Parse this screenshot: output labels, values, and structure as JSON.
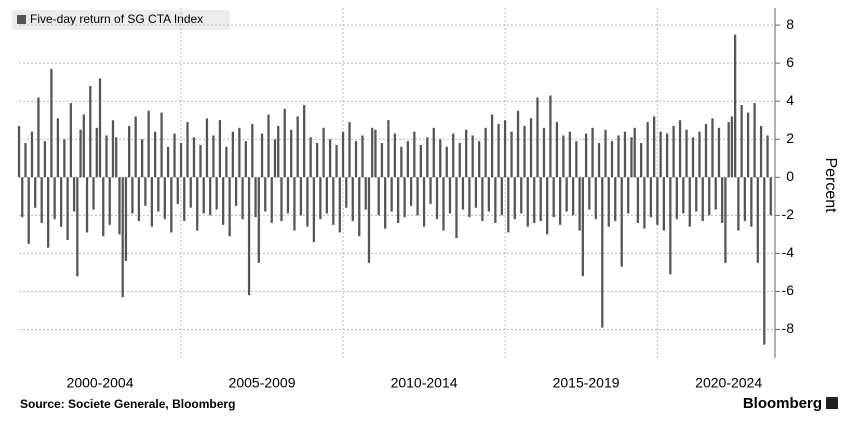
{
  "chart_data": {
    "type": "bar",
    "legend": "Five-day return of SG CTA Index",
    "ylabel": "Percent",
    "source": "Source: Societe Generale, Bloomberg",
    "brand": "Bloomberg",
    "color": "#555555",
    "grid": true,
    "xlim": [
      2000,
      2023.33
    ],
    "xticks": [
      {
        "value": 2002.5,
        "label": "2000-2004"
      },
      {
        "value": 2007.5,
        "label": "2005-2009"
      },
      {
        "value": 2012.5,
        "label": "2010-2014"
      },
      {
        "value": 2017.5,
        "label": "2015-2019"
      },
      {
        "value": 2021.9,
        "label": "2020-2024"
      }
    ],
    "ylim": [
      -9.5,
      8.9
    ],
    "yticks": [
      8,
      6,
      4,
      2,
      0,
      -2,
      -4,
      -6,
      -8
    ],
    "x": [
      2000,
      2000.1,
      2000.2,
      2000.3,
      2000.4,
      2000.5,
      2000.6,
      2000.7,
      2000.8,
      2000.9,
      2001,
      2001.1,
      2001.2,
      2001.3,
      2001.4,
      2001.5,
      2001.6,
      2001.7,
      2001.8,
      2001.9,
      2002,
      2002.1,
      2002.2,
      2002.3,
      2002.4,
      2002.5,
      2002.6,
      2002.7,
      2002.8,
      2002.9,
      2003,
      2003.1,
      2003.2,
      2003.3,
      2003.4,
      2003.5,
      2003.6,
      2003.7,
      2003.8,
      2003.9,
      2004,
      2004.1,
      2004.2,
      2004.3,
      2004.4,
      2004.5,
      2004.6,
      2004.7,
      2004.8,
      2004.9,
      2005,
      2005.1,
      2005.2,
      2005.3,
      2005.4,
      2005.5,
      2005.6,
      2005.7,
      2005.8,
      2005.9,
      2006,
      2006.1,
      2006.2,
      2006.3,
      2006.4,
      2006.5,
      2006.6,
      2006.7,
      2006.8,
      2006.9,
      2007,
      2007.1,
      2007.2,
      2007.3,
      2007.4,
      2007.5,
      2007.6,
      2007.7,
      2007.8,
      2007.9,
      2008,
      2008.1,
      2008.2,
      2008.3,
      2008.4,
      2008.5,
      2008.6,
      2008.7,
      2008.8,
      2008.9,
      2009,
      2009.1,
      2009.2,
      2009.3,
      2009.4,
      2009.5,
      2009.6,
      2009.7,
      2009.8,
      2009.9,
      2010,
      2010.1,
      2010.2,
      2010.3,
      2010.4,
      2010.5,
      2010.6,
      2010.7,
      2010.8,
      2010.9,
      2011,
      2011.1,
      2011.2,
      2011.3,
      2011.4,
      2011.5,
      2011.6,
      2011.7,
      2011.8,
      2011.9,
      2012,
      2012.1,
      2012.2,
      2012.3,
      2012.4,
      2012.5,
      2012.6,
      2012.7,
      2012.8,
      2012.9,
      2013,
      2013.1,
      2013.2,
      2013.3,
      2013.4,
      2013.5,
      2013.6,
      2013.7,
      2013.8,
      2013.9,
      2014,
      2014.1,
      2014.2,
      2014.3,
      2014.4,
      2014.5,
      2014.6,
      2014.7,
      2014.8,
      2014.9,
      2015,
      2015.1,
      2015.2,
      2015.3,
      2015.4,
      2015.5,
      2015.6,
      2015.7,
      2015.8,
      2015.9,
      2016,
      2016.1,
      2016.2,
      2016.3,
      2016.4,
      2016.5,
      2016.6,
      2016.7,
      2016.8,
      2016.9,
      2017,
      2017.1,
      2017.2,
      2017.3,
      2017.4,
      2017.5,
      2017.6,
      2017.7,
      2017.8,
      2017.9,
      2018,
      2018.1,
      2018.2,
      2018.3,
      2018.4,
      2018.5,
      2018.6,
      2018.7,
      2018.8,
      2018.9,
      2019,
      2019.1,
      2019.2,
      2019.3,
      2019.4,
      2019.5,
      2019.6,
      2019.7,
      2019.8,
      2019.9,
      2020,
      2020.1,
      2020.2,
      2020.3,
      2020.4,
      2020.5,
      2020.6,
      2020.7,
      2020.8,
      2020.9,
      2021,
      2021.1,
      2021.2,
      2021.3,
      2021.4,
      2021.5,
      2021.6,
      2021.7,
      2021.8,
      2021.9,
      2022,
      2022.1,
      2022.2,
      2022.3,
      2022.4,
      2022.5,
      2022.6,
      2022.7,
      2022.8,
      2022.9,
      2023,
      2023.1,
      2023.2
    ],
    "values": [
      2.7,
      -2.1,
      1.8,
      -3.5,
      2.4,
      -1.6,
      4.2,
      -2.4,
      1.9,
      -3.7,
      5.7,
      -2.2,
      3.1,
      -2.6,
      2.0,
      -3.3,
      3.9,
      -1.8,
      -5.2,
      2.5,
      3.3,
      -2.9,
      4.8,
      -1.7,
      2.6,
      5.2,
      -3.1,
      2.2,
      -2.5,
      3.0,
      2.1,
      -3.0,
      -6.3,
      -4.4,
      2.7,
      -1.9,
      3.2,
      -2.3,
      2.0,
      -1.5,
      3.5,
      -2.6,
      2.4,
      -1.8,
      3.4,
      -2.2,
      1.6,
      -2.9,
      2.3,
      -1.4,
      1.8,
      -2.3,
      2.9,
      -1.6,
      2.1,
      -2.8,
      1.7,
      -1.9,
      3.1,
      -2.0,
      2.2,
      -1.7,
      3.0,
      -2.5,
      1.6,
      -3.1,
      2.4,
      -1.5,
      2.6,
      -2.2,
      1.9,
      -6.2,
      2.8,
      -2.1,
      -4.5,
      2.3,
      -1.8,
      3.3,
      -2.4,
      2.0,
      2.7,
      -2.3,
      3.6,
      -1.9,
      2.5,
      -2.8,
      3.2,
      -2.0,
      3.8,
      -2.6,
      2.1,
      -3.4,
      1.8,
      -2.2,
      2.6,
      -1.9,
      2.0,
      -2.5,
      1.7,
      -2.9,
      2.4,
      -1.6,
      2.9,
      -2.3,
      1.9,
      -3.1,
      2.2,
      -1.7,
      -4.5,
      2.6,
      2.5,
      -2.0,
      1.8,
      -2.7,
      3.0,
      -1.8,
      2.3,
      -2.4,
      1.6,
      -2.1,
      1.9,
      -1.5,
      2.4,
      -2.0,
      1.7,
      -2.6,
      2.1,
      -1.4,
      2.6,
      -2.2,
      2.0,
      -2.8,
      1.6,
      -1.9,
      2.3,
      -3.2,
      1.8,
      -1.7,
      2.5,
      -2.1,
      2.2,
      -1.6,
      1.9,
      -2.3,
      2.6,
      -1.8,
      3.3,
      -2.4,
      2.8,
      -2.0,
      3.0,
      -2.9,
      2.4,
      -2.2,
      3.5,
      -1.9,
      2.7,
      -2.6,
      3.1,
      -2.4,
      4.2,
      -2.3,
      2.6,
      -3.0,
      4.3,
      -2.1,
      2.9,
      -2.5,
      2.2,
      -1.8,
      2.4,
      -2.0,
      1.9,
      -2.8,
      -5.2,
      2.3,
      -1.7,
      2.6,
      -2.2,
      1.8,
      -7.9,
      2.5,
      -2.6,
      1.9,
      -2.3,
      2.2,
      -4.7,
      2.4,
      -1.9,
      2.1,
      2.6,
      -2.4,
      1.8,
      -2.7,
      2.9,
      -2.1,
      3.2,
      -2.5,
      2.4,
      -2.8,
      2.3,
      -5.1,
      2.7,
      -2.2,
      3.0,
      -1.9,
      2.5,
      -2.6,
      2.1,
      -1.8,
      2.4,
      -2.3,
      2.8,
      -2.0,
      3.1,
      -1.7,
      2.6,
      -2.4,
      -4.5,
      2.9,
      3.2,
      7.5,
      -2.8,
      3.8,
      -2.3,
      3.4,
      -2.6,
      3.9,
      -4.5,
      2.7,
      -8.8,
      2.2,
      -2.0
    ]
  }
}
